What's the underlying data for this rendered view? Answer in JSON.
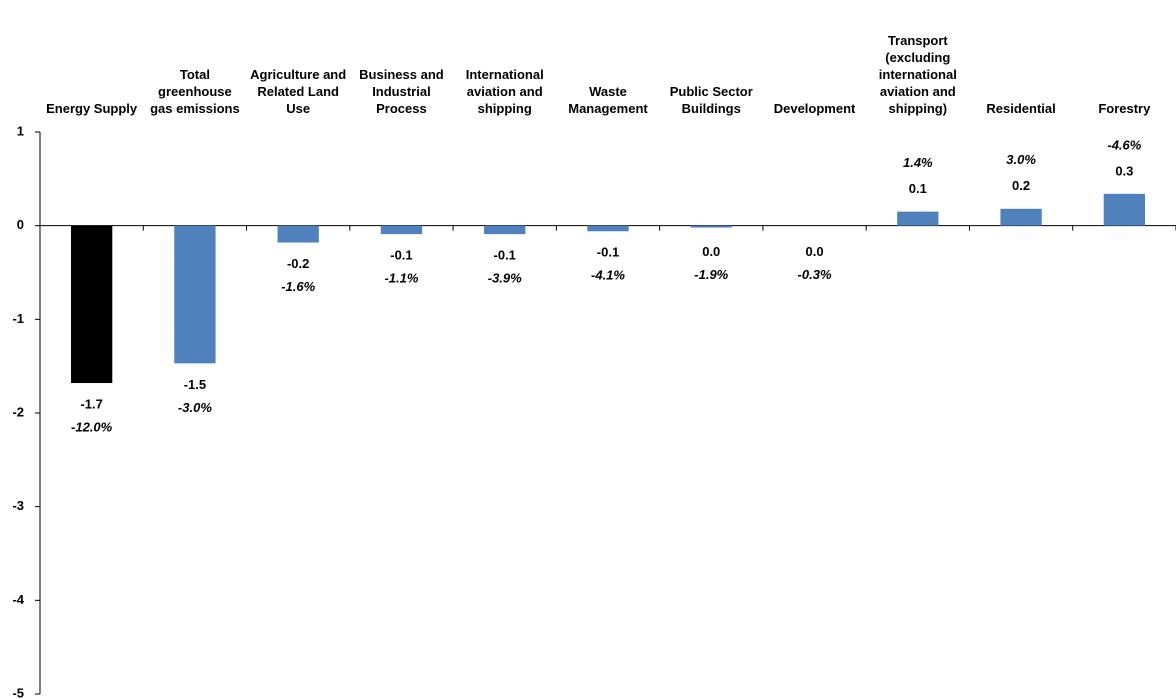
{
  "chart_data": {
    "type": "bar",
    "categories": [
      "Energy Supply",
      "Total greenhouse gas emissions",
      "Agriculture and Related Land Use",
      "Business and Industrial Process",
      "International aviation and shipping",
      "Waste Management",
      "Public Sector Buildings",
      "Development",
      "Transport (excluding international aviation and shipping)",
      "Residential",
      "Forestry"
    ],
    "values": [
      -1.68,
      -1.47,
      -0.18,
      -0.09,
      -0.09,
      -0.06,
      -0.02,
      0,
      0.15,
      0.18,
      0.34
    ],
    "value_labels": [
      "-1.7",
      "-1.5",
      "-0.2",
      "-0.1",
      "-0.1",
      "-0.1",
      "0.0",
      "0.0",
      "0.1",
      "0.2",
      "0.3"
    ],
    "change_labels": [
      "-12.0%",
      "-3.0%",
      "-1.6%",
      "-1.1%",
      "-3.9%",
      "-4.1%",
      "-1.9%",
      "-0.3%",
      "1.4%",
      "3.0%",
      "-4.6%"
    ],
    "colors": [
      "#000000",
      "#4f81bd",
      "#4f81bd",
      "#4f81bd",
      "#4f81bd",
      "#4f81bd",
      "#4f81bd",
      "#4f81bd",
      "#4f81bd",
      "#4f81bd",
      "#4f81bd"
    ],
    "ylim": [
      -5,
      1
    ],
    "yticks": [
      -5,
      -4,
      -3,
      -2,
      -1,
      0,
      1
    ],
    "grid": false
  }
}
